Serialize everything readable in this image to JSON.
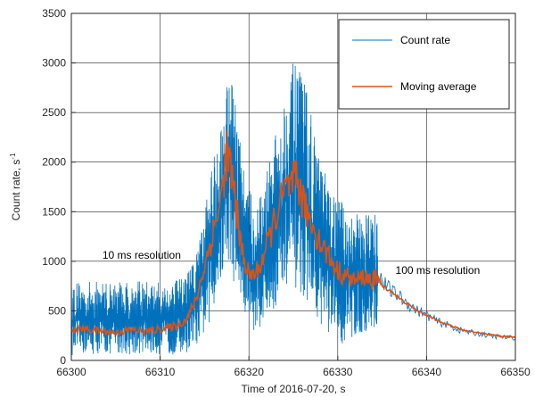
{
  "chart_data": {
    "type": "line",
    "title": "",
    "xlabel": "Time of 2016-07-20, s",
    "ylabel": "Count rate, s",
    "ylabel_exponent": "-1",
    "xlim": [
      66300,
      66350
    ],
    "ylim": [
      0,
      3500
    ],
    "xticks": [
      66300,
      66310,
      66320,
      66330,
      66340,
      66350
    ],
    "yticks": [
      0,
      500,
      1000,
      1500,
      2000,
      2500,
      3000,
      3500
    ],
    "grid": true,
    "legend": {
      "position": "top-right",
      "entries": [
        {
          "label": "Count rate",
          "color": "#0072bd"
        },
        {
          "label": "Moving average",
          "color": "#d95319"
        }
      ]
    },
    "annotations": [
      {
        "text": "10 ms resolution",
        "x": 66303.5,
        "y": 1000
      },
      {
        "text": "100 ms resolution",
        "x": 66336.5,
        "y": 900
      }
    ],
    "series": [
      {
        "name": "Count rate",
        "color": "#0072bd",
        "resolution_s_before_66334.5": 0.01,
        "resolution_s_after_66334.5": 0.1,
        "envelope_x": [
          66300,
          66302,
          66304,
          66306,
          66308,
          66310,
          66312,
          66313,
          66314,
          66315,
          66316,
          66317,
          66317.8,
          66318.5,
          66319.5,
          66320.5,
          66321.5,
          66322.5,
          66323.5,
          66324.5,
          66325,
          66325.5,
          66326.5,
          66327.5,
          66328.5,
          66329.5,
          66330.5,
          66331.5,
          66332.5,
          66333.5,
          66334.5
        ],
        "envelope_high": [
          800,
          800,
          800,
          800,
          800,
          800,
          820,
          900,
          1050,
          1500,
          2100,
          2500,
          3100,
          2600,
          1900,
          1600,
          1700,
          2100,
          2500,
          2900,
          3000,
          2950,
          2800,
          2200,
          1900,
          1700,
          1600,
          1550,
          1450,
          1550,
          1550
        ],
        "envelope_low": [
          50,
          60,
          60,
          60,
          60,
          60,
          60,
          80,
          150,
          250,
          500,
          800,
          1000,
          700,
          400,
          300,
          350,
          450,
          600,
          650,
          700,
          700,
          600,
          450,
          300,
          150,
          150,
          200,
          250,
          300,
          200
        ],
        "tail_x": [
          66334.5,
          66335,
          66336,
          66337,
          66338,
          66339,
          66340,
          66341,
          66342,
          66343,
          66344,
          66345,
          66346,
          66347,
          66348,
          66349,
          66350
        ],
        "tail_y": [
          900,
          800,
          700,
          640,
          560,
          500,
          460,
          400,
          370,
          330,
          300,
          280,
          270,
          250,
          240,
          230,
          230
        ]
      },
      {
        "name": "Moving average",
        "color": "#d95319",
        "x": [
          66300,
          66301,
          66302,
          66303,
          66304,
          66305,
          66306,
          66307,
          66308,
          66309,
          66310,
          66311,
          66312,
          66313,
          66314,
          66315,
          66316,
          66317,
          66317.5,
          66318,
          66318.5,
          66319,
          66320,
          66321,
          66322,
          66323,
          66324,
          66325,
          66325.5,
          66326,
          66327,
          66328,
          66329,
          66330,
          66331,
          66332,
          66333,
          66334,
          66334.5,
          66335,
          66336,
          66337,
          66338,
          66339,
          66340,
          66341,
          66342,
          66343,
          66344,
          66345,
          66346,
          66347,
          66348,
          66349,
          66350
        ],
        "y": [
          300,
          320,
          310,
          300,
          290,
          280,
          300,
          310,
          290,
          300,
          320,
          330,
          360,
          420,
          600,
          950,
          1300,
          1700,
          2100,
          1900,
          1600,
          1200,
          850,
          900,
          1150,
          1450,
          1700,
          1800,
          1800,
          1600,
          1400,
          1200,
          1050,
          900,
          850,
          800,
          850,
          800,
          850,
          750,
          700,
          620,
          560,
          500,
          460,
          410,
          380,
          340,
          310,
          290,
          280,
          260,
          250,
          240,
          230
        ]
      }
    ]
  }
}
